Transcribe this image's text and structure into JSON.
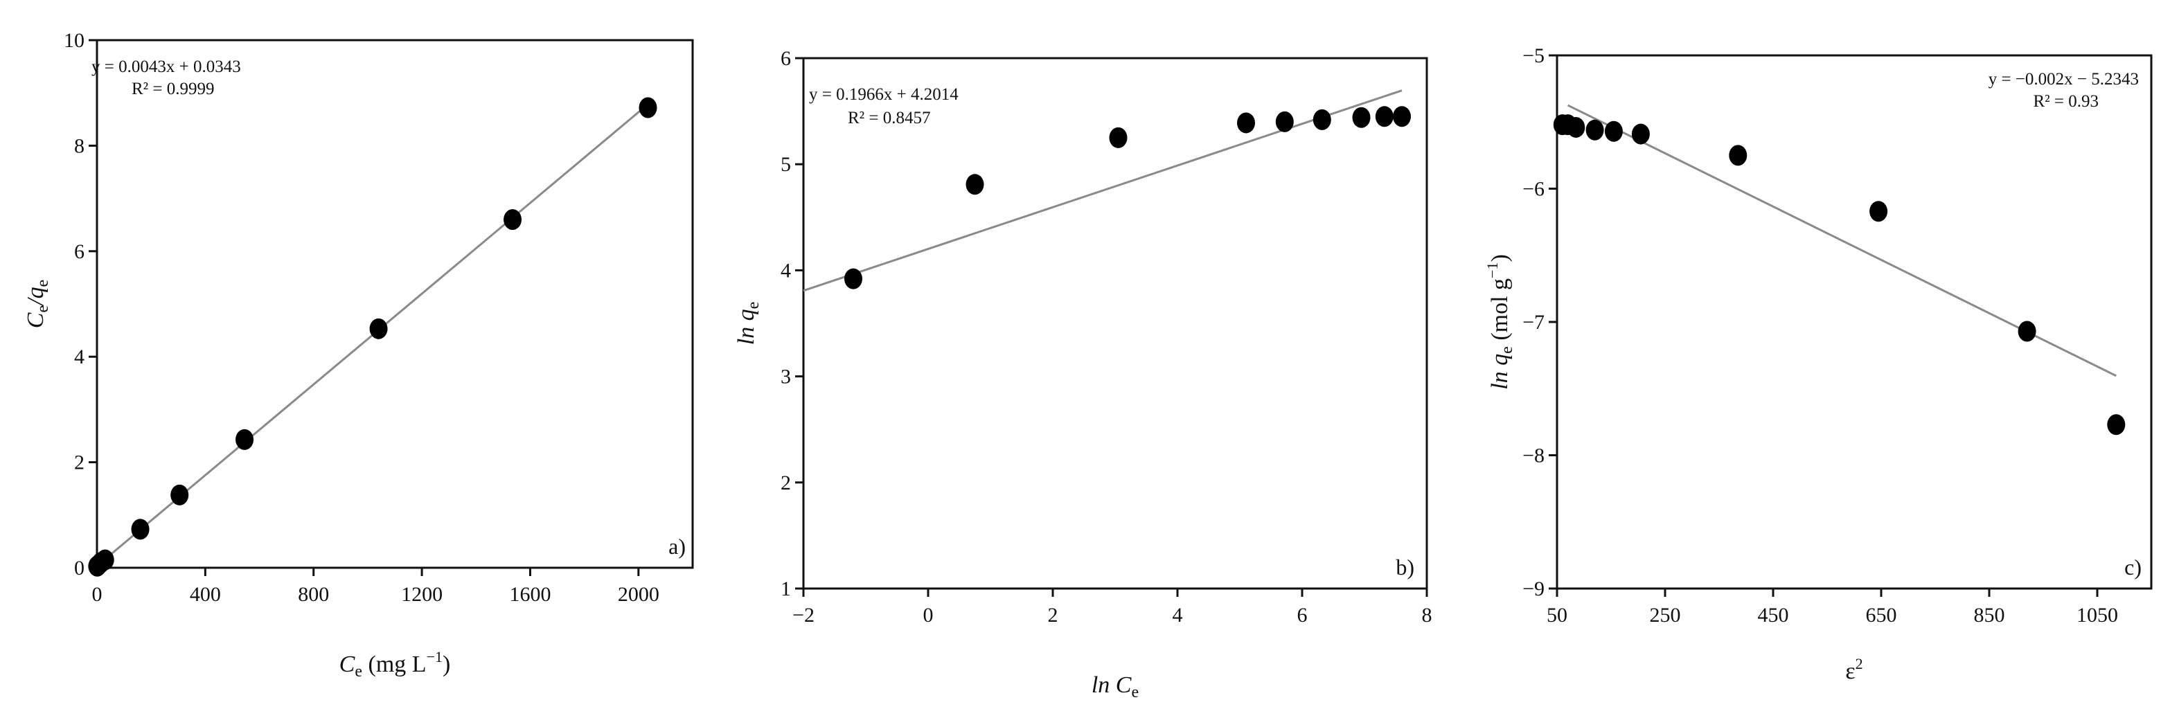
{
  "chart_data": [
    {
      "type": "scatter",
      "panel_label": "a)",
      "xlabel": "C",
      "xlabel_sub": "e",
      "xlabel_unit": " (mg L",
      "xlabel_exp": "−1",
      "xlabel_close": ")",
      "ylabel": "C",
      "ylabel_sub": "e",
      "ylabel_mid": "/q",
      "ylabel_sub2": "e",
      "xlim": [
        0,
        2200
      ],
      "ylim": [
        0,
        10
      ],
      "xticks": [
        0,
        400,
        800,
        1200,
        1600,
        2000
      ],
      "yticks": [
        0,
        2,
        4,
        6,
        8,
        10
      ],
      "grid": false,
      "x": [
        1,
        5,
        15,
        30,
        160,
        305,
        545,
        1040,
        1535,
        2035
      ],
      "y": [
        0.03,
        0.05,
        0.1,
        0.15,
        0.73,
        1.38,
        2.43,
        4.53,
        6.6,
        8.72
      ],
      "trendline": {
        "slope": 0.0043,
        "intercept": 0.0343,
        "x_range": [
          0,
          2040
        ]
      },
      "equation": "y = 0.0043x + 0.0343",
      "r2": "R² = 0.9999"
    },
    {
      "type": "scatter",
      "panel_label": "b)",
      "xlabel": "ln C",
      "xlabel_sub": "e",
      "ylabel": "ln q",
      "ylabel_sub": "e",
      "xlim": [
        -2,
        8
      ],
      "ylim": [
        1,
        6
      ],
      "xticks": [
        -2,
        0,
        2,
        4,
        6,
        8
      ],
      "yticks": [
        1,
        2,
        3,
        4,
        5,
        6
      ],
      "grid": false,
      "x": [
        -1.2,
        0.75,
        3.05,
        5.1,
        5.72,
        6.32,
        6.95,
        7.32,
        7.6
      ],
      "y": [
        3.92,
        4.81,
        5.25,
        5.39,
        5.4,
        5.42,
        5.44,
        5.45,
        5.45
      ],
      "trendline": {
        "slope": 0.1966,
        "intercept": 4.2014,
        "x_range": [
          -2,
          7.6
        ]
      },
      "equation": "y = 0.1966x + 4.2014",
      "r2": "R² = 0.8457"
    },
    {
      "type": "scatter",
      "panel_label": "c)",
      "xlabel": "ε",
      "xlabel_exp": "2",
      "ylabel": "ln q",
      "ylabel_sub": "e",
      "ylabel_unit": " (mol g",
      "ylabel_exp": "−1",
      "ylabel_close": ")",
      "xlim": [
        50,
        1150
      ],
      "ylim": [
        -9,
        -5
      ],
      "xticks": [
        50,
        250,
        450,
        650,
        850,
        1050
      ],
      "yticks": [
        -9,
        -8,
        -7,
        -6,
        -5
      ],
      "grid": false,
      "x": [
        60,
        70,
        85,
        120,
        155,
        205,
        385,
        645,
        920,
        1085
      ],
      "y": [
        -5.52,
        -5.52,
        -5.54,
        -5.56,
        -5.57,
        -5.59,
        -5.75,
        -6.17,
        -7.07,
        -7.77
      ],
      "trendline": {
        "slope": -0.002,
        "intercept": -5.2343,
        "x_range": [
          70,
          1085
        ]
      },
      "equation": "y = −0.002x − 5.2343",
      "r2": "R² = 0.93"
    }
  ]
}
